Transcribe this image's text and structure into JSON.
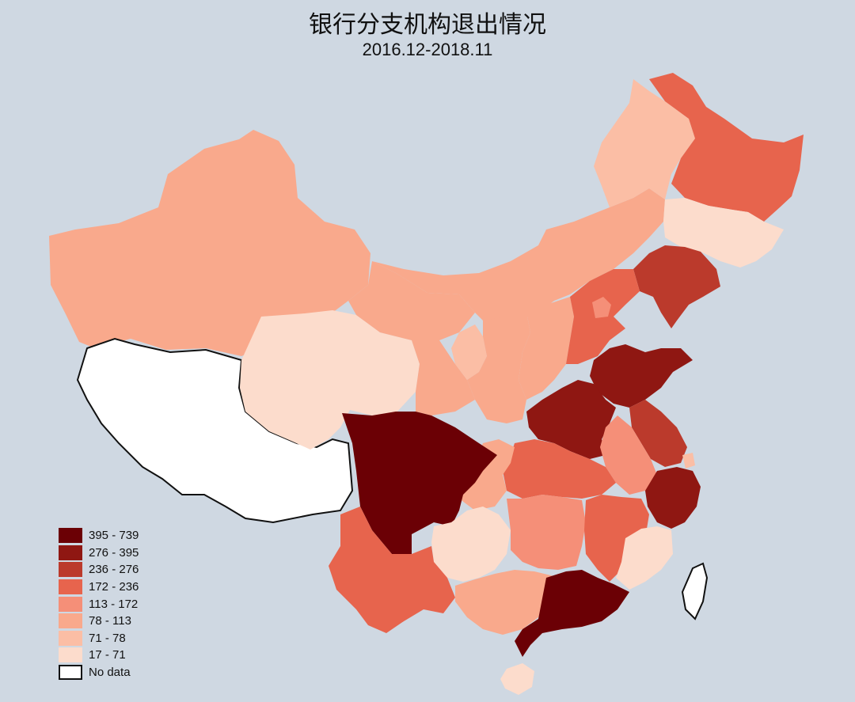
{
  "title": "银行分支机构退出情况",
  "subtitle": "2016.12-2018.11",
  "colors": {
    "background": "#cfd8e2",
    "bin_395_739": "#6b0005",
    "bin_276_395": "#8f1712",
    "bin_236_276": "#bb3a2c",
    "bin_172_236": "#e7644d",
    "bin_113_172": "#f58f78",
    "bin_78_113": "#f9a98c",
    "bin_71_78": "#fbbea5",
    "bin_17_71": "#fcdccc",
    "no_data": "#ffffff"
  },
  "legend": [
    {
      "label": "395 - 739",
      "color": "#6b0005"
    },
    {
      "label": "276 - 395",
      "color": "#8f1712"
    },
    {
      "label": "236 - 276",
      "color": "#bb3a2c"
    },
    {
      "label": "172 - 236",
      "color": "#e7644d"
    },
    {
      "label": "113 - 172",
      "color": "#f58f78"
    },
    {
      "label": "78 - 113",
      "color": "#f9a98c"
    },
    {
      "label": "71 - 78",
      "color": "#fbbea5"
    },
    {
      "label": "17 - 71",
      "color": "#fcdccc"
    },
    {
      "label": "No data",
      "color": "#ffffff"
    }
  ]
}
